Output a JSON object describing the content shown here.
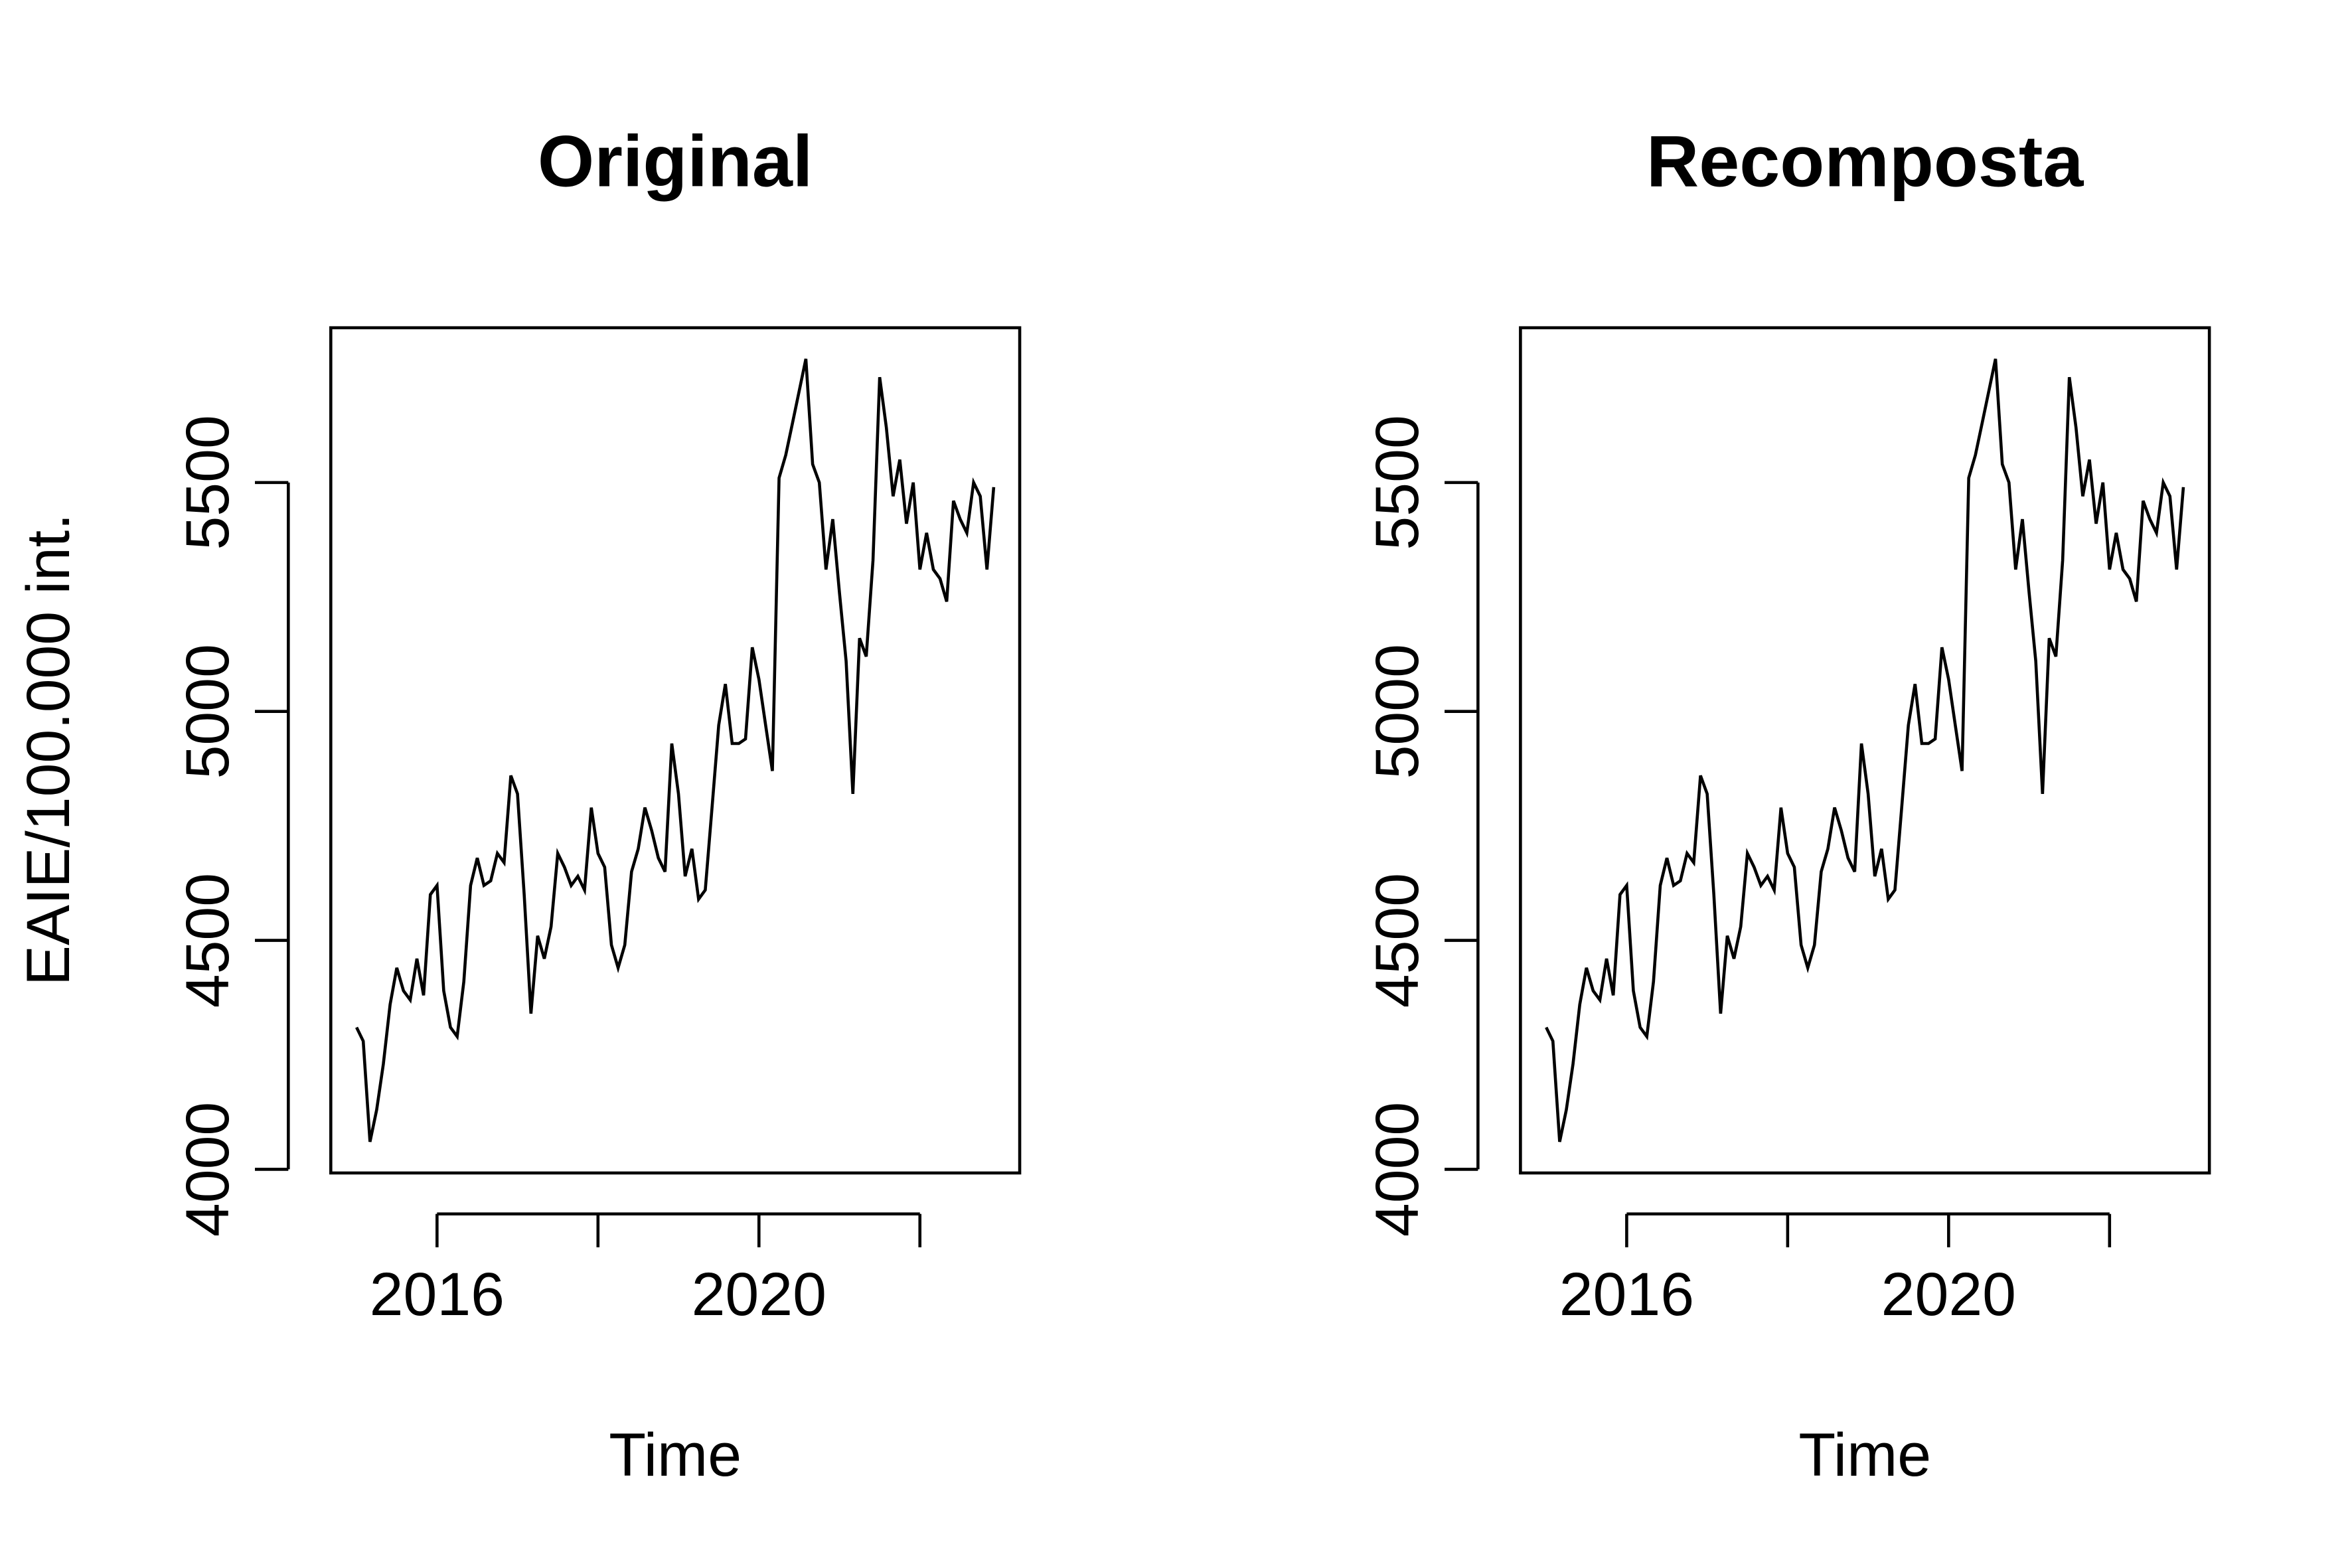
{
  "chart_data": [
    {
      "type": "line",
      "title": "Original",
      "xlabel": "Time",
      "ylabel": "EAIE/100.000 int.",
      "x": [
        2015.0,
        2015.083,
        2015.167,
        2015.25,
        2015.333,
        2015.417,
        2015.5,
        2015.583,
        2015.667,
        2015.75,
        2015.833,
        2015.917,
        2016.0,
        2016.083,
        2016.167,
        2016.25,
        2016.333,
        2016.417,
        2016.5,
        2016.583,
        2016.667,
        2016.75,
        2016.833,
        2016.917,
        2017.0,
        2017.083,
        2017.167,
        2017.25,
        2017.333,
        2017.417,
        2017.5,
        2017.583,
        2017.667,
        2017.75,
        2017.833,
        2017.917,
        2018.0,
        2018.083,
        2018.167,
        2018.25,
        2018.333,
        2018.417,
        2018.5,
        2018.583,
        2018.667,
        2018.75,
        2018.833,
        2018.917,
        2019.0,
        2019.083,
        2019.167,
        2019.25,
        2019.333,
        2019.417,
        2019.5,
        2019.583,
        2019.667,
        2019.75,
        2019.833,
        2019.917,
        2020.0,
        2020.083,
        2020.167,
        2020.25,
        2020.333,
        2020.417,
        2020.5,
        2020.583,
        2020.667,
        2020.75,
        2020.833,
        2020.917,
        2021.0,
        2021.083,
        2021.167,
        2021.25,
        2021.333,
        2021.417,
        2021.5,
        2021.583,
        2021.667,
        2021.75,
        2021.833,
        2021.917,
        2022.0,
        2022.083,
        2022.167,
        2022.25,
        2022.333,
        2022.417,
        2022.5,
        2022.583,
        2022.667,
        2022.75,
        2022.833,
        2022.917
      ],
      "series": [
        {
          "color": "#000000",
          "values": [
            4310,
            4280,
            4060,
            4130,
            4230,
            4360,
            4440,
            4390,
            4370,
            4460,
            4380,
            4600,
            4620,
            4390,
            4310,
            4290,
            4410,
            4620,
            4680,
            4620,
            4630,
            4690,
            4670,
            4860,
            4820,
            4600,
            4340,
            4510,
            4460,
            4530,
            4690,
            4660,
            4620,
            4640,
            4610,
            4790,
            4690,
            4660,
            4490,
            4440,
            4490,
            4650,
            4700,
            4790,
            4740,
            4680,
            4650,
            4930,
            4820,
            4640,
            4700,
            4590,
            4610,
            4790,
            4970,
            5060,
            4930,
            4930,
            4940,
            5140,
            5070,
            4970,
            4870,
            5510,
            5560,
            5630,
            5700,
            5770,
            5540,
            5500,
            5310,
            5420,
            5260,
            5110,
            4820,
            5160,
            5120,
            5330,
            5730,
            5620,
            5470,
            5550,
            5410,
            5500,
            5310,
            5390,
            5310,
            5290,
            5240,
            5460,
            5420,
            5390,
            5500,
            5470,
            5310,
            5490
          ]
        }
      ],
      "xlim": [
        2014.68,
        2023.24
      ],
      "ylim": [
        3992,
        5838
      ],
      "xticks": [
        2016,
        {
          "value": 2018,
          "label": null
        },
        2020,
        {
          "value": 2022,
          "label": null
        }
      ],
      "yticks": [
        4000,
        4500,
        5000,
        5500
      ]
    },
    {
      "type": "line",
      "title": "Recomposta",
      "xlabel": "Time",
      "x": [
        2015.0,
        2015.083,
        2015.167,
        2015.25,
        2015.333,
        2015.417,
        2015.5,
        2015.583,
        2015.667,
        2015.75,
        2015.833,
        2015.917,
        2016.0,
        2016.083,
        2016.167,
        2016.25,
        2016.333,
        2016.417,
        2016.5,
        2016.583,
        2016.667,
        2016.75,
        2016.833,
        2016.917,
        2017.0,
        2017.083,
        2017.167,
        2017.25,
        2017.333,
        2017.417,
        2017.5,
        2017.583,
        2017.667,
        2017.75,
        2017.833,
        2017.917,
        2018.0,
        2018.083,
        2018.167,
        2018.25,
        2018.333,
        2018.417,
        2018.5,
        2018.583,
        2018.667,
        2018.75,
        2018.833,
        2018.917,
        2019.0,
        2019.083,
        2019.167,
        2019.25,
        2019.333,
        2019.417,
        2019.5,
        2019.583,
        2019.667,
        2019.75,
        2019.833,
        2019.917,
        2020.0,
        2020.083,
        2020.167,
        2020.25,
        2020.333,
        2020.417,
        2020.5,
        2020.583,
        2020.667,
        2020.75,
        2020.833,
        2020.917,
        2021.0,
        2021.083,
        2021.167,
        2021.25,
        2021.333,
        2021.417,
        2021.5,
        2021.583,
        2021.667,
        2021.75,
        2021.833,
        2021.917,
        2022.0,
        2022.083,
        2022.167,
        2022.25,
        2022.333,
        2022.417,
        2022.5,
        2022.583,
        2022.667,
        2022.75,
        2022.833,
        2022.917
      ],
      "series": [
        {
          "color": "#000000",
          "values": [
            4310,
            4280,
            4060,
            4130,
            4230,
            4360,
            4440,
            4390,
            4370,
            4460,
            4380,
            4600,
            4620,
            4390,
            4310,
            4290,
            4410,
            4620,
            4680,
            4620,
            4630,
            4690,
            4670,
            4860,
            4820,
            4600,
            4340,
            4510,
            4460,
            4530,
            4690,
            4660,
            4620,
            4640,
            4610,
            4790,
            4690,
            4660,
            4490,
            4440,
            4490,
            4650,
            4700,
            4790,
            4740,
            4680,
            4650,
            4930,
            4820,
            4640,
            4700,
            4590,
            4610,
            4790,
            4970,
            5060,
            4930,
            4930,
            4940,
            5140,
            5070,
            4970,
            4870,
            5510,
            5560,
            5630,
            5700,
            5770,
            5540,
            5500,
            5310,
            5420,
            5260,
            5110,
            4820,
            5160,
            5120,
            5330,
            5730,
            5620,
            5470,
            5550,
            5410,
            5500,
            5310,
            5390,
            5310,
            5290,
            5240,
            5460,
            5420,
            5390,
            5500,
            5470,
            5310,
            5490
          ]
        }
      ],
      "xlim": [
        2014.68,
        2023.24
      ],
      "ylim": [
        3992,
        5838
      ],
      "xticks": [
        2016,
        {
          "value": 2018,
          "label": null
        },
        2020,
        {
          "value": 2022,
          "label": null
        }
      ],
      "yticks": [
        4000,
        4500,
        5000,
        5500
      ]
    }
  ]
}
